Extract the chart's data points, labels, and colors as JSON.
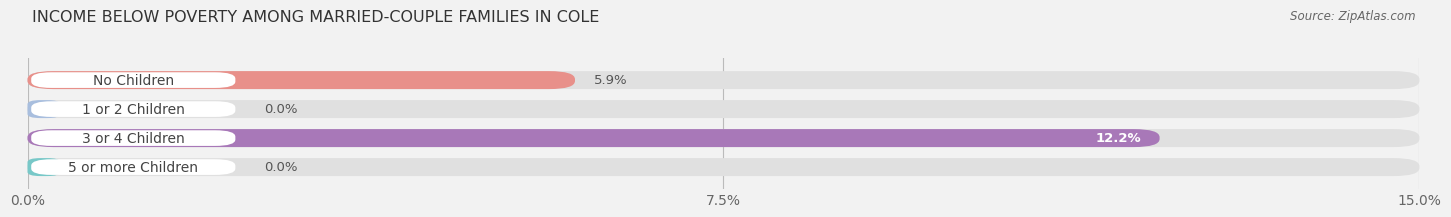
{
  "title": "INCOME BELOW POVERTY AMONG MARRIED-COUPLE FAMILIES IN COLE",
  "source": "Source: ZipAtlas.com",
  "categories": [
    "No Children",
    "1 or 2 Children",
    "3 or 4 Children",
    "5 or more Children"
  ],
  "values": [
    5.9,
    0.0,
    12.2,
    0.0
  ],
  "bar_colors": [
    "#e8908a",
    "#a8bede",
    "#a878b8",
    "#78c8c8"
  ],
  "xlim": [
    0,
    15.0
  ],
  "xticks": [
    0.0,
    7.5,
    15.0
  ],
  "xticklabels": [
    "0.0%",
    "7.5%",
    "15.0%"
  ],
  "bar_height": 0.62,
  "title_fontsize": 11.5,
  "tick_fontsize": 10,
  "label_fontsize": 10,
  "value_fontsize": 9.5,
  "background_color": "#f2f2f2",
  "bar_background_color": "#e0e0e0",
  "label_bg_color": "#ffffff"
}
